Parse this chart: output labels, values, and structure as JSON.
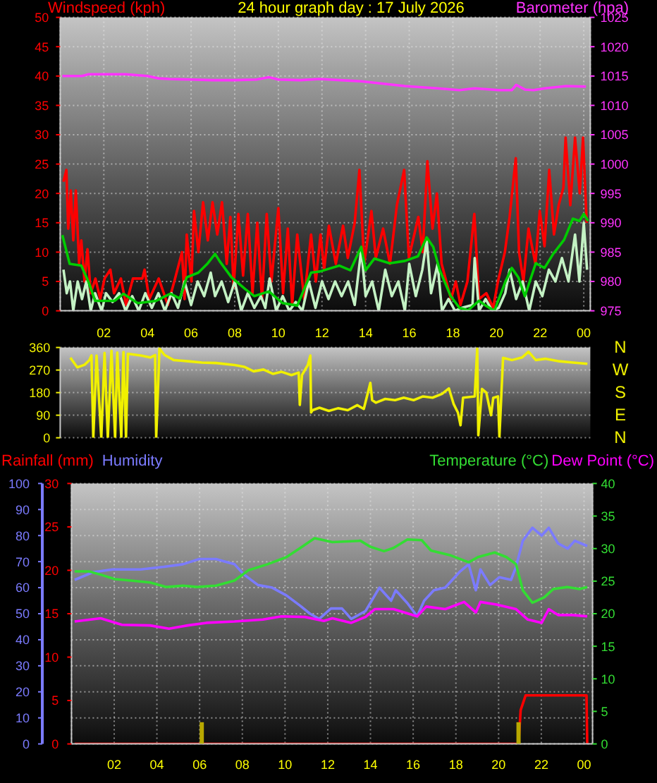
{
  "chart_data": [
    {
      "type": "line",
      "title": "24 hour graph day : 17 July 2026",
      "ylabel": "Windspeed (kph)",
      "y2label": "Barometer (hpa)",
      "xlim": [
        "2026-07-17T00:00",
        "2026-07-18T00:18"
      ],
      "xticks": [
        {
          "value": "2026-07-17T02:00",
          "label": "02"
        },
        {
          "value": "2026-07-17T04:00",
          "label": "04"
        },
        {
          "value": "2026-07-17T06:00",
          "label": "06"
        },
        {
          "value": "2026-07-17T08:00",
          "label": "08"
        },
        {
          "value": "2026-07-17T10:00",
          "label": "10"
        },
        {
          "value": "2026-07-17T12:00",
          "label": "12"
        },
        {
          "value": "2026-07-17T14:00",
          "label": "14"
        },
        {
          "value": "2026-07-17T16:00",
          "label": "16"
        },
        {
          "value": "2026-07-17T18:00",
          "label": "18"
        },
        {
          "value": "2026-07-17T20:00",
          "label": "20"
        },
        {
          "value": "2026-07-17T22:00",
          "label": "22"
        },
        {
          "value": "2026-07-18T00:00",
          "label": "00"
        }
      ],
      "ylim": [
        0,
        50
      ],
      "yticks": [
        0,
        5,
        10,
        15,
        20,
        25,
        30,
        35,
        40,
        45,
        50
      ],
      "y2lim": [
        975,
        1025
      ],
      "y2ticks": [
        975,
        980,
        985,
        990,
        995,
        1000,
        1005,
        1010,
        1015,
        1020,
        1025
      ],
      "grid": true,
      "series": [
        {
          "color": "#ff0000",
          "x": [
            "2026-07-17T00:09",
            "2026-07-17T00:17",
            "2026-07-17T00:22",
            "2026-07-17T00:29",
            "2026-07-17T00:36",
            "2026-07-17T00:43",
            "2026-07-17T00:52",
            "2026-07-17T00:58",
            "2026-07-17T01:07",
            "2026-07-17T01:15",
            "2026-07-17T01:24",
            "2026-07-17T01:37",
            "2026-07-17T01:50",
            "2026-07-17T02:02",
            "2026-07-17T02:18",
            "2026-07-17T02:28",
            "2026-07-17T02:47",
            "2026-07-17T03:01",
            "2026-07-17T03:20",
            "2026-07-17T03:46",
            "2026-07-17T03:52",
            "2026-07-17T04:05",
            "2026-07-17T04:31",
            "2026-07-17T04:56",
            "2026-07-17T05:16",
            "2026-07-17T05:35",
            "2026-07-17T05:42",
            "2026-07-17T05:48",
            "2026-07-17T06:01",
            "2026-07-17T06:08",
            "2026-07-17T06:20",
            "2026-07-17T06:33",
            "2026-07-17T06:46",
            "2026-07-17T06:59",
            "2026-07-17T07:12",
            "2026-07-17T07:25",
            "2026-07-17T07:38",
            "2026-07-17T07:48",
            "2026-07-17T07:57",
            "2026-07-17T08:10",
            "2026-07-17T08:23",
            "2026-07-17T08:36",
            "2026-07-17T08:49",
            "2026-07-17T09:02",
            "2026-07-17T09:15",
            "2026-07-17T09:28",
            "2026-07-17T09:41",
            "2026-07-17T10:00",
            "2026-07-17T10:13",
            "2026-07-17T10:26",
            "2026-07-17T10:38",
            "2026-07-17T10:52",
            "2026-07-17T11:11",
            "2026-07-17T11:30",
            "2026-07-17T11:43",
            "2026-07-17T11:56",
            "2026-07-17T12:06",
            "2026-07-17T12:19",
            "2026-07-17T12:38",
            "2026-07-17T12:58",
            "2026-07-17T13:11",
            "2026-07-17T13:30",
            "2026-07-17T13:43",
            "2026-07-17T13:56",
            "2026-07-17T14:16",
            "2026-07-17T14:28",
            "2026-07-17T14:48",
            "2026-07-17T15:07",
            "2026-07-17T15:26",
            "2026-07-17T15:46",
            "2026-07-17T15:59",
            "2026-07-17T16:25",
            "2026-07-17T16:37",
            "2026-07-17T16:50",
            "2026-07-17T17:04",
            "2026-07-17T17:16",
            "2026-07-17T17:29",
            "2026-07-17T17:42",
            "2026-07-17T17:55",
            "2026-07-17T18:08",
            "2026-07-17T18:21",
            "2026-07-17T18:40",
            "2026-07-17T18:59",
            "2026-07-17T19:12",
            "2026-07-17T19:32",
            "2026-07-17T19:51",
            "2026-07-17T20:04",
            "2026-07-17T20:23",
            "2026-07-17T20:36",
            "2026-07-17T20:53",
            "2026-07-17T21:02",
            "2026-07-17T21:14",
            "2026-07-17T21:28",
            "2026-07-17T21:47",
            "2026-07-17T21:59",
            "2026-07-17T22:12",
            "2026-07-17T22:25",
            "2026-07-17T22:38",
            "2026-07-17T22:51",
            "2026-07-17T23:04",
            "2026-07-17T23:10",
            "2026-07-17T23:23",
            "2026-07-17T23:36",
            "2026-07-17T23:49",
            "2026-07-17T23:58",
            "2026-07-18T00:08"
          ],
          "values": [
            22,
            24,
            14,
            20.5,
            12,
            20.5,
            8,
            12,
            5,
            10.5,
            3,
            5.5,
            2,
            5.5,
            7,
            3,
            5.5,
            1,
            5.5,
            5.5,
            7,
            2,
            5.5,
            1,
            5.5,
            10,
            2,
            13,
            5,
            17,
            10,
            18.5,
            12,
            18.5,
            13,
            18.5,
            8,
            16,
            4,
            16.5,
            6,
            16.5,
            3,
            15,
            2,
            16.5,
            5,
            17.5,
            3,
            14,
            1,
            13,
            2,
            13,
            5,
            13,
            7,
            14.5,
            8,
            14.5,
            9,
            15,
            24,
            8,
            17,
            9,
            14,
            8,
            18,
            24,
            9,
            16,
            10,
            25.5,
            14,
            20,
            8,
            5,
            2,
            5,
            1,
            5,
            16.5,
            2,
            3,
            0.5,
            5,
            10,
            16,
            26,
            10,
            5,
            14,
            8,
            17,
            11,
            24,
            13,
            18,
            21,
            29.5,
            18,
            29.5,
            20,
            29.5,
            15
          ]
        },
        {
          "color": "#c4f2c4",
          "x": [
            "2026-07-17T00:09",
            "2026-07-17T00:18",
            "2026-07-17T00:27",
            "2026-07-17T00:36",
            "2026-07-17T00:48",
            "2026-07-17T01:00",
            "2026-07-17T01:12",
            "2026-07-17T01:24",
            "2026-07-17T01:36",
            "2026-07-17T01:54",
            "2026-07-17T02:06",
            "2026-07-17T02:24",
            "2026-07-17T02:42",
            "2026-07-17T03:00",
            "2026-07-17T03:18",
            "2026-07-17T03:36",
            "2026-07-17T03:54",
            "2026-07-17T04:12",
            "2026-07-17T04:30",
            "2026-07-17T04:48",
            "2026-07-17T05:06",
            "2026-07-17T05:24",
            "2026-07-17T05:42",
            "2026-07-17T06:00",
            "2026-07-17T06:18",
            "2026-07-17T06:36",
            "2026-07-17T06:54",
            "2026-07-17T07:06",
            "2026-07-17T07:24",
            "2026-07-17T07:42",
            "2026-07-17T08:00",
            "2026-07-17T08:18",
            "2026-07-17T08:36",
            "2026-07-17T08:54",
            "2026-07-17T09:12",
            "2026-07-17T09:24",
            "2026-07-17T09:36",
            "2026-07-17T09:54",
            "2026-07-17T10:12",
            "2026-07-17T10:30",
            "2026-07-17T10:48",
            "2026-07-17T11:06",
            "2026-07-17T11:24",
            "2026-07-17T11:42",
            "2026-07-17T12:00",
            "2026-07-17T12:18",
            "2026-07-17T12:36",
            "2026-07-17T12:54",
            "2026-07-17T13:12",
            "2026-07-17T13:30",
            "2026-07-17T13:48",
            "2026-07-17T14:00",
            "2026-07-17T14:18",
            "2026-07-17T14:36",
            "2026-07-17T14:54",
            "2026-07-17T15:12",
            "2026-07-17T15:30",
            "2026-07-17T15:48",
            "2026-07-17T16:00",
            "2026-07-17T16:18",
            "2026-07-17T16:36",
            "2026-07-17T16:48",
            "2026-07-17T17:00",
            "2026-07-17T17:18",
            "2026-07-17T17:30",
            "2026-07-17T17:48",
            "2026-07-17T18:06",
            "2026-07-17T18:24",
            "2026-07-17T18:54",
            "2026-07-17T19:00",
            "2026-07-17T19:12",
            "2026-07-17T19:30",
            "2026-07-17T19:48",
            "2026-07-17T20:06",
            "2026-07-17T20:24",
            "2026-07-17T20:36",
            "2026-07-17T20:54",
            "2026-07-17T21:12",
            "2026-07-17T21:30",
            "2026-07-17T21:48",
            "2026-07-17T22:06",
            "2026-07-17T22:24",
            "2026-07-17T22:42",
            "2026-07-17T23:00",
            "2026-07-17T23:18",
            "2026-07-17T23:36",
            "2026-07-17T23:48",
            "2026-07-18T00:00",
            "2026-07-18T00:09"
          ],
          "values": [
            7,
            3,
            5,
            0,
            5,
            2,
            5,
            0,
            3,
            0,
            3,
            1.5,
            3,
            0,
            2.5,
            0,
            3,
            0.5,
            3,
            0,
            3,
            0.5,
            5,
            1,
            5,
            2.5,
            6.5,
            2.5,
            5,
            1.5,
            5,
            0,
            3,
            0.5,
            2.5,
            0.5,
            5.5,
            0,
            2.5,
            0,
            1.5,
            0,
            5,
            0.5,
            5,
            2,
            5,
            2.5,
            5,
            1,
            10.5,
            2.5,
            5,
            0,
            7,
            2.5,
            5,
            0,
            8,
            2.5,
            7,
            12,
            3,
            8,
            0,
            2,
            0,
            0.5,
            1,
            9,
            0,
            2,
            0,
            0.5,
            3,
            7,
            2,
            5,
            0,
            5,
            2.5,
            7,
            5,
            9,
            5,
            13,
            5,
            15,
            7
          ]
        },
        {
          "color": "#00cc00",
          "x": [
            "2026-07-17T00:06",
            "2026-07-17T00:26",
            "2026-07-17T00:58",
            "2026-07-17T01:18",
            "2026-07-17T01:36",
            "2026-07-17T02:30",
            "2026-07-17T02:54",
            "2026-07-17T03:33",
            "2026-07-17T04:24",
            "2026-07-17T05:03",
            "2026-07-17T05:29",
            "2026-07-17T05:48",
            "2026-07-17T06:20",
            "2026-07-17T06:46",
            "2026-07-17T07:06",
            "2026-07-17T07:18",
            "2026-07-17T07:51",
            "2026-07-17T08:29",
            "2026-07-17T08:54",
            "2026-07-17T09:34",
            "2026-07-17T10:12",
            "2026-07-17T10:52",
            "2026-07-17T11:30",
            "2026-07-17T11:54",
            "2026-07-17T12:48",
            "2026-07-17T13:18",
            "2026-07-17T13:48",
            "2026-07-17T14:00",
            "2026-07-17T14:24",
            "2026-07-17T15:06",
            "2026-07-17T15:48",
            "2026-07-17T16:24",
            "2026-07-17T16:48",
            "2026-07-17T17:06",
            "2026-07-17T17:24",
            "2026-07-17T17:54",
            "2026-07-17T18:18",
            "2026-07-17T18:42",
            "2026-07-17T19:12",
            "2026-07-17T19:30",
            "2026-07-17T19:54",
            "2026-07-17T20:24",
            "2026-07-17T20:42",
            "2026-07-17T21:00",
            "2026-07-17T21:18",
            "2026-07-17T21:48",
            "2026-07-17T22:12",
            "2026-07-17T22:36",
            "2026-07-17T23:06",
            "2026-07-17T23:30",
            "2026-07-17T23:48",
            "2026-07-18T00:00",
            "2026-07-18T00:12"
          ],
          "values": [
            12.9,
            8,
            7.7,
            4.9,
            1.7,
            1.7,
            2.9,
            1.3,
            1.7,
            2.9,
            2.1,
            5.7,
            6.5,
            8.1,
            9.7,
            8.5,
            5.7,
            3.7,
            2.5,
            3.3,
            1.3,
            0.9,
            6.5,
            6.7,
            7.7,
            6.9,
            10.9,
            6.9,
            8.9,
            8.1,
            8.5,
            9.3,
            12.5,
            10.9,
            6.9,
            2.5,
            0.5,
            0.1,
            1.7,
            0.9,
            0,
            4.9,
            7.3,
            5.7,
            2.5,
            8.1,
            7.3,
            9.7,
            12.1,
            15.7,
            15.3,
            16.5,
            15.3
          ]
        },
        {
          "color": "#ff33ff",
          "axis": "y2",
          "x": [
            "2026-07-17T00:06",
            "2026-07-17T01:00",
            "2026-07-17T01:18",
            "2026-07-17T02:00",
            "2026-07-17T03:00",
            "2026-07-17T04:00",
            "2026-07-17T04:30",
            "2026-07-17T05:00",
            "2026-07-17T06:00",
            "2026-07-17T07:00",
            "2026-07-17T08:00",
            "2026-07-17T09:00",
            "2026-07-17T09:34",
            "2026-07-17T10:00",
            "2026-07-17T11:00",
            "2026-07-17T11:54",
            "2026-07-17T13:48",
            "2026-07-17T15:48",
            "2026-07-17T17:18",
            "2026-07-17T18:18",
            "2026-07-17T19:00",
            "2026-07-17T20:06",
            "2026-07-17T20:42",
            "2026-07-17T20:54",
            "2026-07-17T21:18",
            "2026-07-17T21:42",
            "2026-07-17T22:12",
            "2026-07-17T23:12",
            "2026-07-18T00:06"
          ],
          "values": [
            1015.0,
            1015.0,
            1015.3,
            1015.3,
            1015.3,
            1015.0,
            1014.6,
            1014.5,
            1014.4,
            1014.3,
            1014.3,
            1014.4,
            1014.8,
            1014.4,
            1014.3,
            1014.5,
            1014.1,
            1013.3,
            1012.9,
            1012.6,
            1012.9,
            1012.6,
            1012.6,
            1013.5,
            1012.7,
            1012.6,
            1012.9,
            1013.3,
            1013.2
          ]
        }
      ]
    },
    {
      "type": "line",
      "xlim": [
        "2026-07-17T00:00",
        "2026-07-18T00:18"
      ],
      "ylim": [
        0,
        360
      ],
      "yticks": [
        0,
        90,
        180,
        270,
        360
      ],
      "grid": "y",
      "tick_labels": "y",
      "annotations": [
        "N",
        "W",
        "S",
        "E",
        "N"
      ],
      "series": [
        {
          "color": "#f0f000",
          "x": [
            "2026-07-17T00:28",
            "2026-07-17T00:47",
            "2026-07-17T01:07",
            "2026-07-17T01:20",
            "2026-07-17T01:26",
            "2026-07-17T01:31",
            "2026-07-17T01:40",
            "2026-07-17T01:53",
            "2026-07-17T02:02",
            "2026-07-17T02:11",
            "2026-07-17T02:21",
            "2026-07-17T02:31",
            "2026-07-17T02:37",
            "2026-07-17T02:48",
            "2026-07-17T02:54",
            "2026-07-17T03:01",
            "2026-07-17T03:06",
            "2026-07-17T03:42",
            "2026-07-17T04:08",
            "2026-07-17T04:21",
            "2026-07-17T04:24",
            "2026-07-17T04:33",
            "2026-07-17T04:47",
            "2026-07-17T05:12",
            "2026-07-17T05:52",
            "2026-07-17T06:30",
            "2026-07-17T07:09",
            "2026-07-17T08:00",
            "2026-07-17T08:26",
            "2026-07-17T08:52",
            "2026-07-17T09:19",
            "2026-07-17T09:45",
            "2026-07-17T10:09",
            "2026-07-17T10:36",
            "2026-07-17T10:56",
            "2026-07-17T10:59",
            "2026-07-17T11:05",
            "2026-07-17T11:21",
            "2026-07-17T11:28",
            "2026-07-17T11:30",
            "2026-07-17T11:34",
            "2026-07-17T11:53",
            "2026-07-17T12:19",
            "2026-07-17T12:45",
            "2026-07-17T13:11",
            "2026-07-17T13:37",
            "2026-07-17T13:55",
            "2026-07-17T14:13",
            "2026-07-17T14:18",
            "2026-07-17T14:28",
            "2026-07-17T14:54",
            "2026-07-17T15:21",
            "2026-07-17T15:45",
            "2026-07-17T16:12",
            "2026-07-17T16:38",
            "2026-07-17T17:04",
            "2026-07-17T17:30",
            "2026-07-17T17:49",
            "2026-07-17T18:02",
            "2026-07-17T18:14",
            "2026-07-17T18:21",
            "2026-07-17T18:28",
            "2026-07-17T19:00",
            "2026-07-17T19:07",
            "2026-07-17T19:10",
            "2026-07-17T19:20",
            "2026-07-17T19:32",
            "2026-07-17T19:45",
            "2026-07-17T19:51",
            "2026-07-17T20:04",
            "2026-07-17T20:08",
            "2026-07-17T20:18",
            "2026-07-17T20:43",
            "2026-07-17T21:10",
            "2026-07-17T21:28",
            "2026-07-17T21:48",
            "2026-07-17T22:14",
            "2026-07-17T22:53",
            "2026-07-17T23:31",
            "2026-07-18T00:10"
          ],
          "values": [
            319,
            281,
            291,
            309,
            328,
            0,
            328,
            0,
            338,
            0,
            347,
            0,
            340,
            0,
            342,
            0,
            335,
            328,
            320,
            330,
            0,
            356,
            330,
            310,
            305,
            300,
            298,
            290,
            283,
            265,
            272,
            255,
            263,
            250,
            260,
            131,
            250,
            290,
            328,
            101,
            110,
            120,
            107,
            118,
            110,
            130,
            115,
            219,
            150,
            140,
            155,
            150,
            160,
            150,
            165,
            160,
            175,
            197,
            135,
            100,
            50,
            160,
            165,
            356,
            10,
            195,
            180,
            90,
            159,
            165,
            4,
            319,
            310,
            320,
            343,
            310,
            315,
            305,
            300,
            295
          ]
        }
      ]
    },
    {
      "type": "line",
      "xlim": [
        "2026-07-17T00:00",
        "2026-07-18T00:24"
      ],
      "xticks": [
        {
          "value": "2026-07-17T02:00",
          "label": "02"
        },
        {
          "value": "2026-07-17T04:00",
          "label": "04"
        },
        {
          "value": "2026-07-17T06:00",
          "label": "06"
        },
        {
          "value": "2026-07-17T08:00",
          "label": "08"
        },
        {
          "value": "2026-07-17T10:00",
          "label": "10"
        },
        {
          "value": "2026-07-17T12:00",
          "label": "12"
        },
        {
          "value": "2026-07-17T14:00",
          "label": "14"
        },
        {
          "value": "2026-07-17T16:00",
          "label": "16"
        },
        {
          "value": "2026-07-17T18:00",
          "label": "18"
        },
        {
          "value": "2026-07-17T20:00",
          "label": "20"
        },
        {
          "value": "2026-07-17T22:00",
          "label": "22"
        },
        {
          "value": "2026-07-18T00:00",
          "label": "00"
        }
      ],
      "ylim": [
        0,
        100
      ],
      "yticks": [
        0,
        10,
        20,
        30,
        40,
        50,
        60,
        70,
        80,
        90,
        100
      ],
      "y2lim": [
        0,
        30
      ],
      "y2ticks": [
        0,
        5,
        10,
        15,
        20,
        25,
        30
      ],
      "y3lim": [
        0,
        40
      ],
      "y3ticks": [
        0,
        5,
        10,
        15,
        20,
        25,
        30,
        35,
        40
      ],
      "grid": true,
      "series": [
        {
          "name": "Rainfall (mm)",
          "color": "#ff0000",
          "axis": "y2",
          "x": [
            "2026-07-17T00:09",
            "2026-07-17T20:56",
            "2026-07-17T21:02",
            "2026-07-17T21:16",
            "2026-07-18T00:07",
            "2026-07-18T00:09"
          ],
          "values": [
            0,
            0,
            3.9,
            5.6,
            5.6,
            0
          ]
        },
        {
          "name": "Humidity",
          "color": "#7b7bff",
          "x": [
            "2026-07-17T00:09",
            "2026-07-17T01:02",
            "2026-07-17T01:55",
            "2026-07-17T03:14",
            "2026-07-17T04:20",
            "2026-07-17T05:13",
            "2026-07-17T05:59",
            "2026-07-17T06:46",
            "2026-07-17T07:12",
            "2026-07-17T07:38",
            "2026-07-17T08:05",
            "2026-07-17T08:44",
            "2026-07-17T09:24",
            "2026-07-17T10:04",
            "2026-07-17T10:43",
            "2026-07-17T11:10",
            "2026-07-17T11:36",
            "2026-07-17T12:09",
            "2026-07-17T12:40",
            "2026-07-17T13:06",
            "2026-07-17T13:46",
            "2026-07-17T14:25",
            "2026-07-17T14:58",
            "2026-07-17T15:11",
            "2026-07-17T15:44",
            "2026-07-17T16:11",
            "2026-07-17T16:31",
            "2026-07-17T16:58",
            "2026-07-17T17:30",
            "2026-07-17T18:10",
            "2026-07-17T18:36",
            "2026-07-17T18:56",
            "2026-07-17T19:09",
            "2026-07-17T19:36",
            "2026-07-17T20:02",
            "2026-07-17T20:35",
            "2026-07-17T20:49",
            "2026-07-17T21:08",
            "2026-07-17T21:35",
            "2026-07-17T22:01",
            "2026-07-17T22:21",
            "2026-07-17T22:47",
            "2026-07-17T23:14",
            "2026-07-17T23:34",
            "2026-07-18T00:09"
          ],
          "values": [
            63,
            66,
            67,
            67,
            68,
            69,
            71,
            71,
            70,
            69,
            65,
            61,
            60,
            57,
            53,
            50,
            48,
            52,
            52,
            48,
            51,
            60,
            55,
            59,
            54,
            49,
            55,
            59,
            60,
            66,
            69,
            59,
            67,
            61,
            64,
            63,
            68,
            78,
            83,
            80,
            83,
            77,
            75,
            78,
            76
          ]
        },
        {
          "name": "Temperature (°C)",
          "color": "#33dd33",
          "axis": "y3",
          "x": [
            "2026-07-17T00:09",
            "2026-07-17T00:49",
            "2026-07-17T01:22",
            "2026-07-17T02:02",
            "2026-07-17T02:47",
            "2026-07-17T03:41",
            "2026-07-17T04:27",
            "2026-07-17T05:13",
            "2026-07-17T05:53",
            "2026-07-17T06:46",
            "2026-07-17T07:38",
            "2026-07-17T08:18",
            "2026-07-17T09:11",
            "2026-07-17T10:04",
            "2026-07-17T10:43",
            "2026-07-17T11:23",
            "2026-07-17T12:13",
            "2026-07-17T13:32",
            "2026-07-17T13:59",
            "2026-07-17T14:38",
            "2026-07-17T15:05",
            "2026-07-17T15:44",
            "2026-07-17T16:24",
            "2026-07-17T16:50",
            "2026-07-17T17:43",
            "2026-07-17T18:36",
            "2026-07-17T19:02",
            "2026-07-17T19:49",
            "2026-07-17T20:22",
            "2026-07-17T20:49",
            "2026-07-17T21:08",
            "2026-07-17T21:35",
            "2026-07-17T22:08",
            "2026-07-17T22:34",
            "2026-07-17T23:14",
            "2026-07-17T23:47",
            "2026-07-18T00:09"
          ],
          "values": [
            26.5,
            26.5,
            26,
            25.3,
            25.1,
            24.8,
            24.1,
            24.3,
            24.1,
            24.3,
            25.1,
            26.7,
            27.6,
            28.7,
            30.1,
            31.6,
            31.0,
            31.2,
            30.3,
            29.6,
            30.1,
            31.4,
            31.3,
            29.7,
            29.0,
            27.9,
            28.7,
            29.4,
            28.7,
            27.6,
            23.6,
            21.7,
            22.5,
            23.8,
            24.1,
            23.8,
            24.1
          ]
        },
        {
          "name": "Dew Point (°C)",
          "color": "#ff00ff",
          "axis": "y3",
          "x": [
            "2026-07-17T00:09",
            "2026-07-17T01:22",
            "2026-07-17T02:22",
            "2026-07-17T03:41",
            "2026-07-17T04:34",
            "2026-07-17T05:26",
            "2026-07-17T06:19",
            "2026-07-17T07:38",
            "2026-07-17T08:58",
            "2026-07-17T09:50",
            "2026-07-17T10:56",
            "2026-07-17T11:49",
            "2026-07-17T12:13",
            "2026-07-17T13:06",
            "2026-07-17T13:46",
            "2026-07-17T14:12",
            "2026-07-17T15:05",
            "2026-07-17T16:11",
            "2026-07-17T16:37",
            "2026-07-17T17:30",
            "2026-07-17T18:23",
            "2026-07-17T18:56",
            "2026-07-17T19:09",
            "2026-07-17T19:54",
            "2026-07-17T20:49",
            "2026-07-17T21:22",
            "2026-07-17T22:01",
            "2026-07-17T22:21",
            "2026-07-17T22:47",
            "2026-07-17T23:27",
            "2026-07-18T00:09"
          ],
          "values": [
            18.8,
            19.3,
            18.3,
            18.2,
            17.7,
            18.2,
            18.6,
            18.8,
            19.1,
            19.6,
            19.5,
            18.9,
            19.3,
            18.6,
            19.5,
            20.7,
            20.7,
            19.6,
            21.1,
            20.7,
            21.8,
            20.2,
            21.8,
            21.4,
            20.7,
            19.1,
            18.6,
            20.7,
            19.8,
            19.8,
            19.6
          ]
        },
        {
          "type": "bar",
          "color": "#b8a800",
          "axis": "y2",
          "x": [
            "2026-07-17T06:06",
            "2026-07-17T20:56"
          ],
          "values": [
            2.5,
            2.5
          ]
        }
      ]
    }
  ]
}
